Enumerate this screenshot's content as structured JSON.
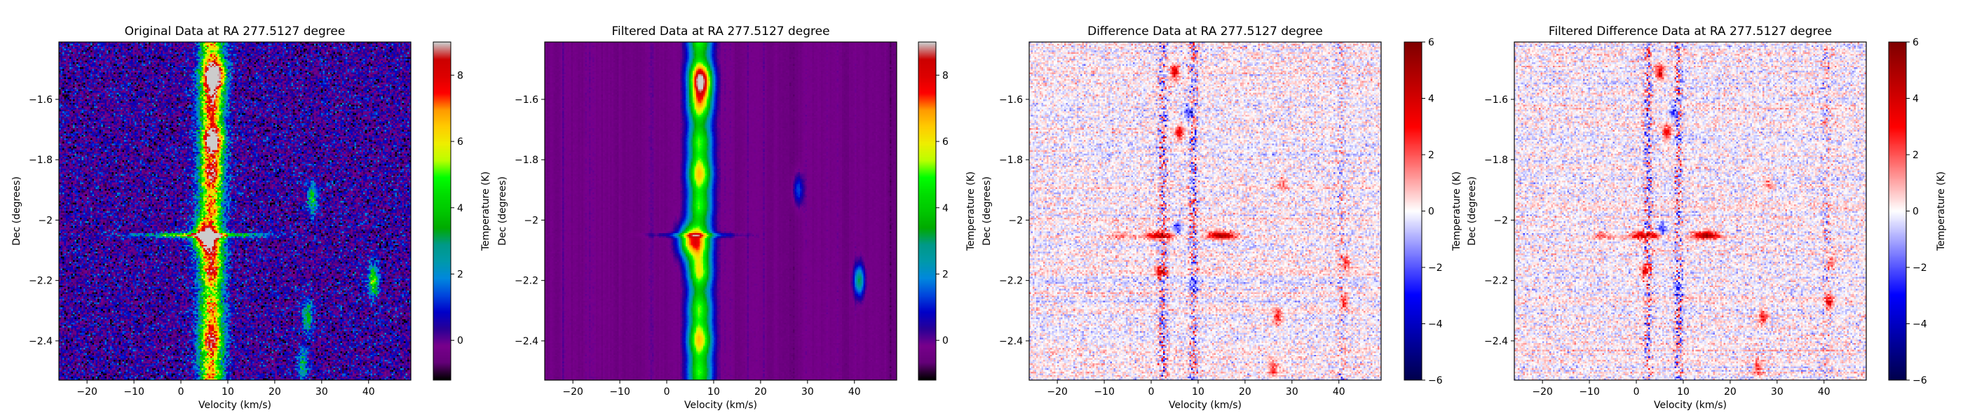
{
  "figure": {
    "background": "#ffffff"
  },
  "chart_data": [
    {
      "id": "original",
      "type": "heatmap",
      "title": "Original Data at RA 277.5127 degree",
      "xlabel": "Velocity (km/s)",
      "ylabel": "Dec (degrees)",
      "xlim": [
        -26,
        49
      ],
      "ylim": [
        -2.53,
        -1.41
      ],
      "xticks": [
        -20,
        -10,
        0,
        10,
        20,
        30,
        40
      ],
      "yticks": [
        -1.6,
        -1.8,
        -2.0,
        -2.2,
        -2.4
      ],
      "colormap": "nipy_spectral",
      "colorbar": {
        "label": "Temperature (K)",
        "vmin": -1.2,
        "vmax": 9.0,
        "ticks": [
          0,
          2,
          4,
          6,
          8
        ]
      },
      "noise": "strong",
      "features": [
        {
          "kind": "vertical-band",
          "v_center": 6.5,
          "v_halfwidth": 3.2,
          "dec_range": [
            -2.53,
            -1.41
          ],
          "peak_K": 7.0
        },
        {
          "kind": "hot-spot",
          "v": 7.5,
          "dec": -1.52,
          "peak_K": 8.5
        },
        {
          "kind": "hot-spot",
          "v": 7.0,
          "dec": -1.73,
          "peak_K": 8.0
        },
        {
          "kind": "hot-spot",
          "v": 4.5,
          "dec": -2.05,
          "peak_K": 8.8
        },
        {
          "kind": "horizontal-streak",
          "dec": -2.05,
          "v_range": [
            -14,
            22
          ],
          "peak_K": 6.0
        },
        {
          "kind": "clump",
          "v": 41.0,
          "dec": -2.2,
          "peak_K": 5.0
        },
        {
          "kind": "clump",
          "v": 28.0,
          "dec": -1.93,
          "peak_K": 3.5
        },
        {
          "kind": "clump",
          "v": 27.0,
          "dec": -2.32,
          "peak_K": 3.5
        },
        {
          "kind": "clump",
          "v": 26.0,
          "dec": -2.48,
          "peak_K": 3.0
        }
      ]
    },
    {
      "id": "filtered",
      "type": "heatmap",
      "title": "Filtered Data at RA 277.5127 degree",
      "xlabel": "Velocity (km/s)",
      "ylabel": "Dec (degrees)",
      "xlim": [
        -26,
        49
      ],
      "ylim": [
        -2.53,
        -1.41
      ],
      "xticks": [
        -20,
        -10,
        0,
        10,
        20,
        30,
        40
      ],
      "yticks": [
        -1.6,
        -1.8,
        -2.0,
        -2.2,
        -2.4
      ],
      "colormap": "nipy_spectral",
      "colorbar": {
        "label": "Temperature (K)",
        "vmin": -1.2,
        "vmax": 9.0,
        "ticks": [
          0,
          2,
          4,
          6,
          8
        ]
      },
      "noise": "smooth",
      "features": [
        {
          "kind": "vertical-band",
          "v_center": 7.0,
          "v_halfwidth": 3.2,
          "dec_range": [
            -2.53,
            -1.41
          ],
          "peak_K": 5.5
        },
        {
          "kind": "hot-spot",
          "v": 7.5,
          "dec": -1.55,
          "peak_K": 7.5
        },
        {
          "kind": "hot-spot",
          "v": 4.5,
          "dec": -2.07,
          "peak_K": 8.0
        },
        {
          "kind": "horizontal-streak",
          "dec": -2.05,
          "v_range": [
            -5,
            18
          ],
          "peak_K": 2.0
        },
        {
          "kind": "clump",
          "v": 41.0,
          "dec": -2.2,
          "peak_K": 3.5
        },
        {
          "kind": "clump",
          "v": 28.0,
          "dec": -1.9,
          "peak_K": 1.8
        }
      ]
    },
    {
      "id": "difference",
      "type": "heatmap",
      "title": "Difference Data at RA 277.5127 degree",
      "xlabel": "Velocity (km/s)",
      "ylabel": "Dec (degrees)",
      "xlim": [
        -26,
        49
      ],
      "ylim": [
        -2.53,
        -1.41
      ],
      "xticks": [
        -20,
        -10,
        0,
        10,
        20,
        30,
        40
      ],
      "yticks": [
        -1.6,
        -1.8,
        -2.0,
        -2.2,
        -2.4
      ],
      "colormap": "seismic",
      "colorbar": {
        "label": "Temperature (K)",
        "vmin": -6,
        "vmax": 6,
        "ticks": [
          -6,
          -4,
          -2,
          0,
          2,
          4,
          6
        ]
      },
      "noise": "diverging",
      "features": [
        {
          "kind": "streak",
          "v": 15.0,
          "dec": -2.05,
          "v_halfwidth": 3.5,
          "value_K": 5.5
        },
        {
          "kind": "streak",
          "v": 2.0,
          "dec": -2.05,
          "v_halfwidth": 4.0,
          "value_K": 4.5
        },
        {
          "kind": "streak",
          "v": -7.0,
          "dec": -2.05,
          "v_halfwidth": 3.5,
          "value_K": 1.5
        },
        {
          "kind": "blob",
          "v": 5.0,
          "dec": -1.51,
          "value_K": 3.5
        },
        {
          "kind": "blob",
          "v": 6.0,
          "dec": -1.71,
          "value_K": 3.5
        },
        {
          "kind": "blob",
          "v": 2.0,
          "dec": -2.17,
          "value_K": 3.5
        },
        {
          "kind": "blob",
          "v": 27.0,
          "dec": -2.32,
          "value_K": 3.0
        },
        {
          "kind": "blob",
          "v": 26.0,
          "dec": -2.49,
          "value_K": 2.5
        },
        {
          "kind": "blob",
          "v": 41.0,
          "dec": -2.27,
          "value_K": 3.0
        },
        {
          "kind": "blob",
          "v": 41.5,
          "dec": -2.14,
          "value_K": 2.0
        },
        {
          "kind": "blob",
          "v": 28.0,
          "dec": -1.88,
          "value_K": 1.5
        },
        {
          "kind": "blob",
          "v": 8.0,
          "dec": -1.64,
          "value_K": -2.5
        },
        {
          "kind": "blob",
          "v": 5.5,
          "dec": -2.03,
          "value_K": -2.5
        },
        {
          "kind": "blob",
          "v": 9.0,
          "dec": -2.22,
          "value_K": -2.0
        }
      ]
    },
    {
      "id": "filtered-difference",
      "type": "heatmap",
      "title": "Filtered Difference Data at RA 277.5127 degree",
      "xlabel": "Velocity (km/s)",
      "ylabel": "Dec (degrees)",
      "xlim": [
        -26,
        49
      ],
      "ylim": [
        -2.53,
        -1.41
      ],
      "xticks": [
        -20,
        -10,
        0,
        10,
        20,
        30,
        40
      ],
      "yticks": [
        -1.6,
        -1.8,
        -2.0,
        -2.2,
        -2.4
      ],
      "colormap": "seismic",
      "colorbar": {
        "label": "Temperature (K)",
        "vmin": -6,
        "vmax": 6,
        "ticks": [
          -6,
          -4,
          -2,
          0,
          2,
          4,
          6
        ]
      },
      "noise": "diverging",
      "features": [
        {
          "kind": "streak",
          "v": 15.0,
          "dec": -2.05,
          "v_halfwidth": 3.5,
          "value_K": 5.5
        },
        {
          "kind": "streak",
          "v": 2.0,
          "dec": -2.05,
          "v_halfwidth": 4.0,
          "value_K": 4.5
        },
        {
          "kind": "streak",
          "v": -7.0,
          "dec": -2.05,
          "v_halfwidth": 3.5,
          "value_K": 1.5
        },
        {
          "kind": "blob",
          "v": 5.0,
          "dec": -1.51,
          "value_K": 3.5
        },
        {
          "kind": "blob",
          "v": 6.5,
          "dec": -1.71,
          "value_K": 3.5
        },
        {
          "kind": "blob",
          "v": 2.0,
          "dec": -2.17,
          "value_K": 3.5
        },
        {
          "kind": "blob",
          "v": 27.0,
          "dec": -2.32,
          "value_K": 3.0
        },
        {
          "kind": "blob",
          "v": 26.0,
          "dec": -2.49,
          "value_K": 2.5
        },
        {
          "kind": "blob",
          "v": 41.0,
          "dec": -2.27,
          "value_K": 3.0
        },
        {
          "kind": "blob",
          "v": 41.5,
          "dec": -2.14,
          "value_K": 2.0
        },
        {
          "kind": "blob",
          "v": 28.0,
          "dec": -1.88,
          "value_K": 1.5
        },
        {
          "kind": "blob",
          "v": 8.0,
          "dec": -1.64,
          "value_K": -2.5
        },
        {
          "kind": "blob",
          "v": 5.5,
          "dec": -2.03,
          "value_K": -2.5
        },
        {
          "kind": "blob",
          "v": 9.0,
          "dec": -2.22,
          "value_K": -2.0
        }
      ]
    }
  ]
}
